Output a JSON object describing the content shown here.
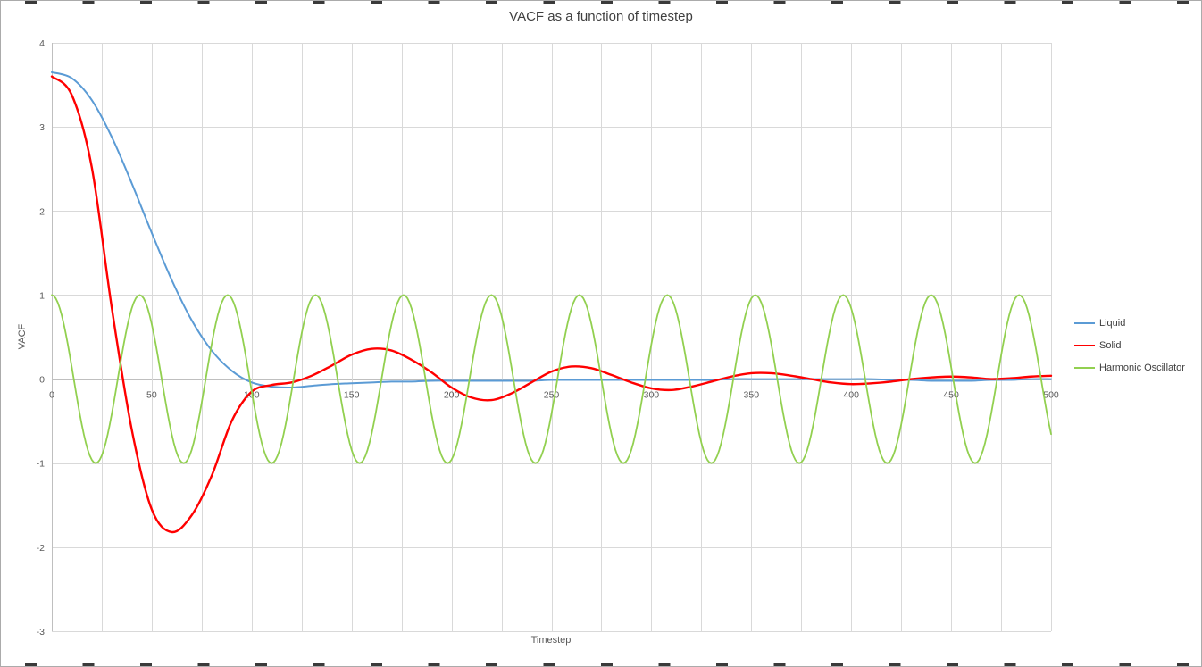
{
  "chart": {
    "title": "VACF as a function of timestep",
    "x_axis": {
      "label": "Timestep",
      "ticks": [
        0,
        50,
        100,
        150,
        200,
        250,
        300,
        350,
        400,
        450,
        500
      ],
      "tick_labels": [
        "0",
        "50",
        "100",
        "150",
        "200",
        "250",
        "300",
        "350",
        "400",
        "450",
        "500"
      ],
      "minor_grid_step": 25
    },
    "y_axis": {
      "label": "VACF",
      "ticks": [
        4,
        3,
        2,
        1,
        0,
        -1,
        -2,
        -3
      ],
      "tick_labels": [
        "4",
        "3",
        "2",
        "1",
        "0",
        "-1",
        "-2",
        "-3"
      ]
    },
    "legend": [
      {
        "label": "Liquid",
        "color": "#5B9BD5"
      },
      {
        "label": "Solid",
        "color": "#FF0000"
      },
      {
        "label": "Harmonic Oscillator",
        "color": "#92D050"
      }
    ]
  },
  "chart_data": {
    "type": "line",
    "title": "VACF as a function of timestep",
    "xlabel": "Timestep",
    "ylabel": "VACF",
    "xlim": [
      0,
      500
    ],
    "ylim": [
      -3,
      4
    ],
    "grid": true,
    "legend_position": "right",
    "series": [
      {
        "name": "Liquid",
        "color": "#5B9BD5",
        "x": [
          0,
          10,
          20,
          30,
          40,
          50,
          60,
          70,
          80,
          90,
          100,
          110,
          120,
          130,
          140,
          150,
          160,
          170,
          180,
          190,
          200,
          210,
          220,
          230,
          240,
          250,
          260,
          270,
          280,
          290,
          300,
          310,
          320,
          330,
          340,
          350,
          360,
          370,
          380,
          390,
          400,
          410,
          420,
          430,
          440,
          450,
          460,
          470,
          480,
          490,
          500
        ],
        "y": [
          3.65,
          3.58,
          3.32,
          2.88,
          2.33,
          1.74,
          1.18,
          0.7,
          0.34,
          0.1,
          -0.04,
          -0.09,
          -0.1,
          -0.08,
          -0.06,
          -0.05,
          -0.04,
          -0.03,
          -0.03,
          -0.02,
          -0.02,
          -0.02,
          -0.02,
          -0.02,
          -0.02,
          -0.01,
          -0.01,
          -0.01,
          -0.01,
          -0.01,
          -0.01,
          -0.01,
          -0.01,
          -0.01,
          0.0,
          0.0,
          0.0,
          0.0,
          0.0,
          0.0,
          0.0,
          0.0,
          -0.01,
          -0.01,
          -0.02,
          -0.02,
          -0.02,
          -0.01,
          -0.01,
          0.0,
          0.0
        ]
      },
      {
        "name": "Solid",
        "color": "#FF0000",
        "x": [
          0,
          10,
          20,
          30,
          40,
          50,
          60,
          70,
          80,
          90,
          100,
          110,
          120,
          130,
          140,
          150,
          160,
          170,
          180,
          190,
          200,
          210,
          220,
          230,
          240,
          250,
          260,
          270,
          280,
          290,
          300,
          310,
          320,
          330,
          340,
          350,
          360,
          370,
          380,
          390,
          400,
          410,
          420,
          430,
          440,
          450,
          460,
          470,
          480,
          490,
          500
        ],
        "y": [
          3.6,
          3.38,
          2.52,
          0.85,
          -0.6,
          -1.55,
          -1.82,
          -1.62,
          -1.15,
          -0.5,
          -0.15,
          -0.07,
          -0.04,
          0.04,
          0.16,
          0.29,
          0.36,
          0.34,
          0.23,
          0.08,
          -0.1,
          -0.22,
          -0.25,
          -0.17,
          -0.04,
          0.09,
          0.15,
          0.13,
          0.05,
          -0.04,
          -0.11,
          -0.13,
          -0.09,
          -0.03,
          0.03,
          0.07,
          0.07,
          0.04,
          0.0,
          -0.04,
          -0.06,
          -0.05,
          -0.03,
          0.0,
          0.02,
          0.03,
          0.02,
          0.0,
          0.01,
          0.03,
          0.04
        ]
      },
      {
        "name": "Harmonic Oscillator",
        "color": "#92D050",
        "function": {
          "kind": "cosine",
          "amplitude": 1,
          "period": 44,
          "phase_deg": 0,
          "x_start": 0,
          "x_end": 500
        }
      }
    ]
  }
}
